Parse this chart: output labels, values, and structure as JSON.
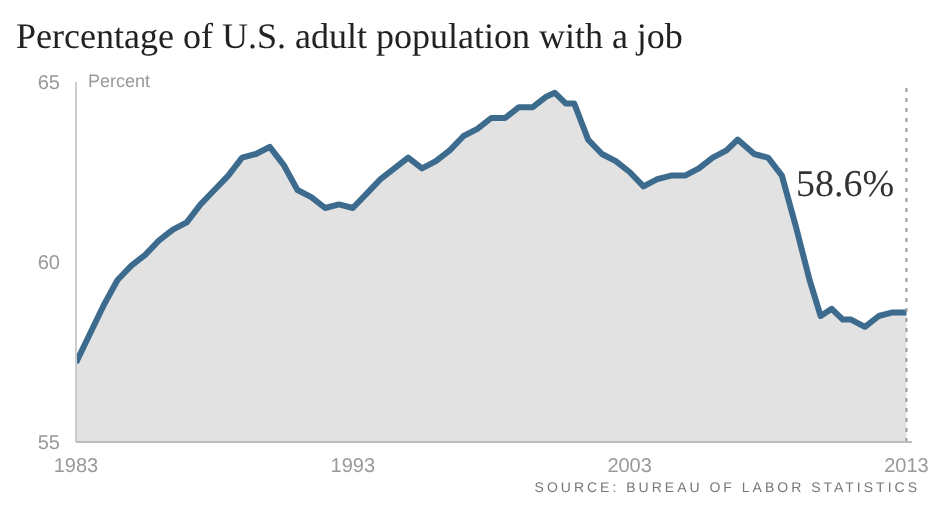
{
  "chart_data": {
    "type": "area",
    "title": "Percentage of U.S. adult population with a job",
    "ylabel": "Percent",
    "x": [
      1983.0,
      1983.5,
      1984.0,
      1984.5,
      1985.0,
      1985.5,
      1986.0,
      1986.5,
      1987.0,
      1987.5,
      1988.0,
      1988.5,
      1989.0,
      1989.5,
      1990.0,
      1990.5,
      1991.0,
      1991.5,
      1992.0,
      1992.5,
      1993.0,
      1993.5,
      1994.0,
      1994.5,
      1995.0,
      1995.5,
      1996.0,
      1996.5,
      1997.0,
      1997.5,
      1998.0,
      1998.5,
      1999.0,
      1999.5,
      2000.0,
      2000.3,
      2000.7,
      2001.0,
      2001.5,
      2002.0,
      2002.5,
      2003.0,
      2003.5,
      2004.0,
      2004.5,
      2005.0,
      2005.5,
      2006.0,
      2006.5,
      2006.9,
      2007.5,
      2008.0,
      2008.5,
      2009.0,
      2009.5,
      2009.9,
      2010.3,
      2010.7,
      2011.0,
      2011.5,
      2012.0,
      2012.5,
      2013.0
    ],
    "series": [
      {
        "color": "#3d6b8e",
        "values": [
          57.2,
          58.0,
          58.8,
          59.5,
          59.9,
          60.2,
          60.6,
          60.9,
          61.1,
          61.6,
          62.0,
          62.4,
          62.9,
          63.0,
          63.2,
          62.7,
          62.0,
          61.8,
          61.5,
          61.6,
          61.5,
          61.9,
          62.3,
          62.6,
          62.9,
          62.6,
          62.8,
          63.1,
          63.5,
          63.7,
          64.0,
          64.0,
          64.3,
          64.3,
          64.6,
          64.7,
          64.4,
          64.4,
          63.4,
          63.0,
          62.8,
          62.5,
          62.1,
          62.3,
          62.4,
          62.4,
          62.6,
          62.9,
          63.1,
          63.4,
          63.0,
          62.9,
          62.4,
          61.0,
          59.5,
          58.5,
          58.7,
          58.4,
          58.4,
          58.2,
          58.5,
          58.6,
          58.6
        ]
      }
    ],
    "xlim": [
      1983,
      2013.2
    ],
    "xticks": [
      1983,
      1993,
      2003,
      2013
    ],
    "ylim": [
      55,
      65
    ],
    "yticks": [
      55,
      60,
      65
    ],
    "grid": false,
    "legend": false,
    "ref_lines": [
      {
        "axis": "x",
        "value": 2013,
        "line_style": "dotted",
        "color": "#999999"
      }
    ],
    "annotations": [
      "58.6%",
      "SOURCE: BUREAU OF LABOR STATISTICS"
    ]
  }
}
